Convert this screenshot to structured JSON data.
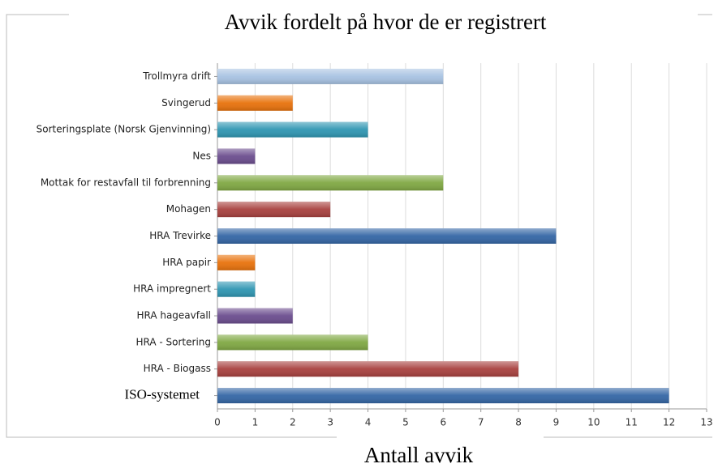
{
  "chart_data": {
    "type": "bar",
    "orientation": "horizontal",
    "title": "Avvik fordelt på hvor de er registrert",
    "x_label": "Antall avvik",
    "categories": [
      "Trollmyra drift",
      "Svingerud",
      "Sorteringsplate (Norsk Gjenvinning)",
      "Nes",
      "Mottak for restavfall til forbrenning",
      "Mohagen",
      "HRA Trevirke",
      "HRA papir",
      "HRA impregnert",
      "HRA hageavfall",
      "HRA - Sortering",
      "HRA - Biogass",
      "ISO-systemet"
    ],
    "values": [
      6,
      2,
      4,
      1,
      6,
      3,
      9,
      1,
      1,
      2,
      4,
      8,
      12
    ],
    "colors": [
      "#a7c2e2",
      "#e8720c",
      "#2f96b2",
      "#6b4d8e",
      "#80a843",
      "#a8413f",
      "#3466a5",
      "#e8720c",
      "#2f96b2",
      "#6b4d8e",
      "#80a843",
      "#a8413f",
      "#3466a5"
    ],
    "xlim": [
      0,
      13
    ],
    "xticks": [
      0,
      1,
      2,
      3,
      4,
      5,
      6,
      7,
      8,
      9,
      10,
      11,
      12,
      13
    ],
    "grid": true
  }
}
